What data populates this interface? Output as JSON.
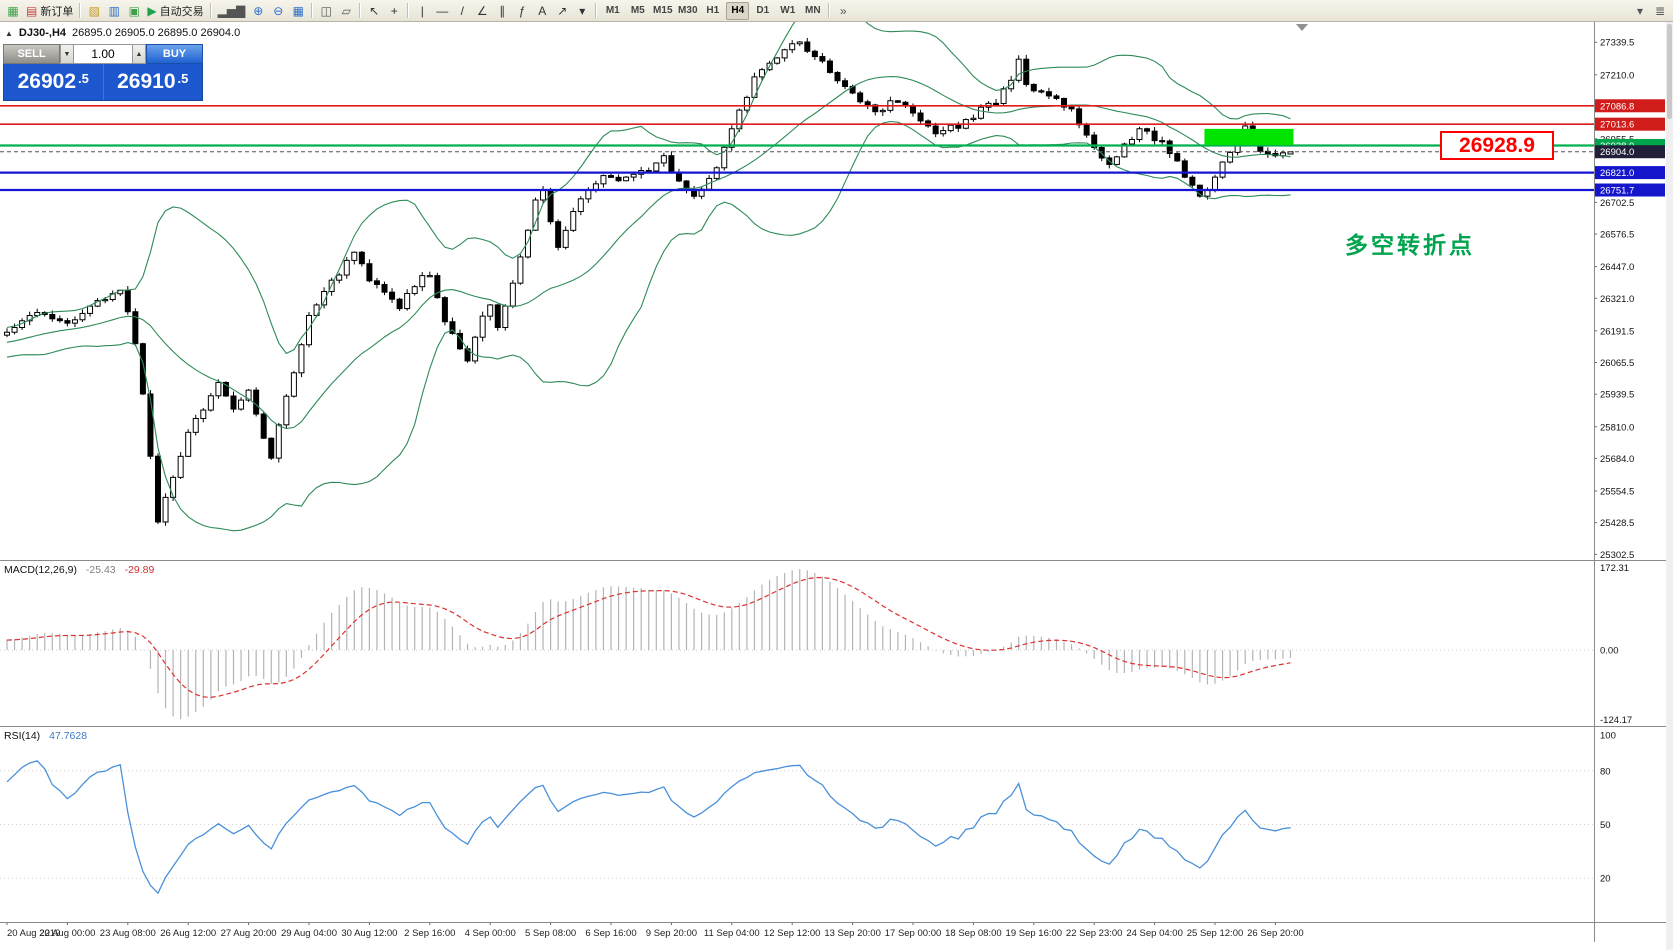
{
  "toolbar": {
    "selected_timeframe": "H4",
    "groups": [
      {
        "name": "file",
        "items": [
          {
            "name": "app-icon",
            "glyph": "▦",
            "color": "#3fa04c"
          },
          {
            "name": "new-order-button",
            "glyph": "▤",
            "color": "#cc4040",
            "label": "新订单"
          }
        ]
      },
      {
        "name": "windows",
        "items": [
          {
            "name": "profiles-icon",
            "glyph": "▧",
            "color": "#c09a28"
          },
          {
            "name": "market-watch-icon",
            "glyph": "▥",
            "color": "#2e6fc9"
          },
          {
            "name": "navigator-icon",
            "glyph": "▣",
            "color": "#3fa04c"
          },
          {
            "name": "autotrading-button",
            "glyph": "▶",
            "color": "#1fa24e",
            "label": "自动交易"
          }
        ]
      },
      {
        "name": "chart-view",
        "items": [
          {
            "name": "bar-chart-icon",
            "glyph": "▂▅▇",
            "color": "#555555"
          },
          {
            "name": "zoom-in-icon",
            "glyph": "⊕",
            "color": "#2e6fc9"
          },
          {
            "name": "zoom-out-icon",
            "glyph": "⊖",
            "color": "#2e6fc9"
          },
          {
            "name": "tile-windows-icon",
            "glyph": "▦",
            "color": "#2e6fc9"
          }
        ]
      },
      {
        "name": "arrange",
        "items": [
          {
            "name": "arrange-charts-icon",
            "glyph": "◫",
            "color": "#555555"
          },
          {
            "name": "cascade-charts-icon",
            "glyph": "▱",
            "color": "#555555"
          }
        ]
      },
      {
        "name": "pointer",
        "items": [
          {
            "name": "cursor-icon",
            "glyph": "↖",
            "color": "#333333"
          },
          {
            "name": "crosshair-icon",
            "glyph": "+",
            "color": "#333333"
          }
        ]
      },
      {
        "name": "draw-tools",
        "items": [
          {
            "name": "vertical-line-tool",
            "glyph": "|",
            "color": "#333333"
          },
          {
            "name": "horizontal-line-tool",
            "glyph": "—",
            "color": "#333333"
          },
          {
            "name": "trendline-tool",
            "glyph": "/",
            "color": "#333333"
          },
          {
            "name": "angle-trendline-tool",
            "glyph": "∠",
            "color": "#333333"
          },
          {
            "name": "channel-tool",
            "glyph": "∥",
            "color": "#333333"
          },
          {
            "name": "fibonacci-tool",
            "glyph": "ƒ",
            "color": "#333333"
          },
          {
            "name": "text-tool",
            "glyph": "A",
            "color": "#333333"
          },
          {
            "name": "arrow-tool",
            "glyph": "↗",
            "color": "#333333"
          },
          {
            "name": "shapes-dropdown",
            "glyph": "▾",
            "color": "#333333"
          }
        ]
      },
      {
        "name": "timeframes",
        "items": [
          {
            "name": "timeframe-m1",
            "label": "M1",
            "tf": true
          },
          {
            "name": "timeframe-m5",
            "label": "M5",
            "tf": true
          },
          {
            "name": "timeframe-m15",
            "label": "M15",
            "tf": true
          },
          {
            "name": "timeframe-m30",
            "label": "M30",
            "tf": true
          },
          {
            "name": "timeframe-h1",
            "label": "H1",
            "tf": true
          },
          {
            "name": "timeframe-h4",
            "label": "H4",
            "tf": true
          },
          {
            "name": "timeframe-d1",
            "label": "D1",
            "tf": true
          },
          {
            "name": "timeframe-w1",
            "label": "W1",
            "tf": true
          },
          {
            "name": "timeframe-mn",
            "label": "MN",
            "tf": true
          }
        ]
      },
      {
        "name": "overflow",
        "items": [
          {
            "name": "toolbar-overflow-icon",
            "glyph": "»",
            "color": "#555555"
          }
        ]
      }
    ],
    "right_icons": [
      {
        "name": "toolbar-customize-icon",
        "glyph": "▾",
        "color": "#555555"
      },
      {
        "name": "window-panels-icon",
        "glyph": "≣",
        "color": "#555555"
      }
    ]
  },
  "symbol_label": {
    "symbol": "DJ30-,H4",
    "ohlc": "26895.0 26905.0 26895.0 26904.0"
  },
  "trade_panel": {
    "collapse_glyph": "▲",
    "sell_label": "SELL",
    "buy_label": "BUY",
    "volume": "1.00",
    "dec_glyph": "▼",
    "inc_glyph": "▲",
    "sell_price_int": "26902",
    "sell_price_frac": ".5",
    "buy_price_int": "26910",
    "buy_price_frac": ".5",
    "panel_color": "#1c57ce"
  },
  "annotations": {
    "turning_point_text": "多空转折点",
    "turning_point_color": "#00a44e",
    "price_callout": "26928.9",
    "price_callout_color": "#ff0000"
  },
  "chart_data": {
    "type": "candlestick",
    "symbol": "DJ30-",
    "timeframe": "H4",
    "last_ohlc": {
      "open": 26895.0,
      "high": 26905.0,
      "low": 26895.0,
      "close": 26904.0
    },
    "n_candles": 171,
    "warmup": 40,
    "price_scale": {
      "min": 25280,
      "max": 27420
    },
    "close_anchors": [
      [
        -40,
        26050
      ],
      [
        -30,
        26120
      ],
      [
        -20,
        26080
      ],
      [
        -10,
        26150
      ],
      [
        0,
        26180
      ],
      [
        4,
        26260
      ],
      [
        8,
        26230
      ],
      [
        12,
        26300
      ],
      [
        15,
        26350
      ],
      [
        16,
        26280
      ],
      [
        17,
        26150
      ],
      [
        18,
        25950
      ],
      [
        19,
        25700
      ],
      [
        20,
        25430
      ],
      [
        21,
        25520
      ],
      [
        22,
        25600
      ],
      [
        24,
        25800
      ],
      [
        26,
        25870
      ],
      [
        28,
        25990
      ],
      [
        30,
        25880
      ],
      [
        32,
        25950
      ],
      [
        34,
        25760
      ],
      [
        35,
        25680
      ],
      [
        36,
        25820
      ],
      [
        38,
        26020
      ],
      [
        40,
        26250
      ],
      [
        42,
        26360
      ],
      [
        44,
        26420
      ],
      [
        46,
        26500
      ],
      [
        48,
        26400
      ],
      [
        50,
        26340
      ],
      [
        52,
        26290
      ],
      [
        54,
        26380
      ],
      [
        56,
        26420
      ],
      [
        58,
        26230
      ],
      [
        60,
        26120
      ],
      [
        61,
        26060
      ],
      [
        63,
        26260
      ],
      [
        64,
        26300
      ],
      [
        65,
        26210
      ],
      [
        66,
        26280
      ],
      [
        68,
        26480
      ],
      [
        70,
        26700
      ],
      [
        71,
        26740
      ],
      [
        72,
        26620
      ],
      [
        73,
        26520
      ],
      [
        75,
        26660
      ],
      [
        77,
        26760
      ],
      [
        79,
        26800
      ],
      [
        81,
        26780
      ],
      [
        83,
        26820
      ],
      [
        85,
        26840
      ],
      [
        87,
        26880
      ],
      [
        88,
        26820
      ],
      [
        89,
        26790
      ],
      [
        91,
        26720
      ],
      [
        93,
        26790
      ],
      [
        95,
        26910
      ],
      [
        97,
        27060
      ],
      [
        99,
        27190
      ],
      [
        101,
        27260
      ],
      [
        103,
        27310
      ],
      [
        105,
        27340
      ],
      [
        107,
        27280
      ],
      [
        109,
        27230
      ],
      [
        111,
        27160
      ],
      [
        113,
        27110
      ],
      [
        115,
        27060
      ],
      [
        117,
        27100
      ],
      [
        119,
        27080
      ],
      [
        121,
        27030
      ],
      [
        123,
        26970
      ],
      [
        125,
        27000
      ],
      [
        127,
        27020
      ],
      [
        129,
        27070
      ],
      [
        131,
        27100
      ],
      [
        133,
        27190
      ],
      [
        134,
        27260
      ],
      [
        135,
        27160
      ],
      [
        137,
        27130
      ],
      [
        139,
        27110
      ],
      [
        141,
        27070
      ],
      [
        143,
        26970
      ],
      [
        145,
        26890
      ],
      [
        146,
        26850
      ],
      [
        148,
        26930
      ],
      [
        150,
        26990
      ],
      [
        152,
        26960
      ],
      [
        153,
        26945
      ],
      [
        155,
        26860
      ],
      [
        156,
        26810
      ],
      [
        158,
        26715
      ],
      [
        159,
        26740
      ],
      [
        160,
        26790
      ],
      [
        161,
        26855
      ],
      [
        163,
        26950
      ],
      [
        164,
        27000
      ],
      [
        165,
        26950
      ],
      [
        166,
        26915
      ],
      [
        167,
        26890
      ],
      [
        168,
        26900
      ],
      [
        169,
        26895
      ],
      [
        170,
        26904
      ]
    ],
    "bollinger": {
      "period": 20,
      "deviation": 2,
      "color": "#2e8b57"
    },
    "h_lines": [
      {
        "name": "resistance-line-1",
        "label": "27086.8",
        "price": 27086.8,
        "color": "#e21b1b",
        "width": 1.6,
        "tag_bg": "#d11c1c"
      },
      {
        "name": "resistance-line-2",
        "label": "27013.6",
        "price": 27013.6,
        "color": "#e21b1b",
        "width": 1.6,
        "tag_bg": "#d11c1c"
      },
      {
        "name": "pivot-line",
        "label": "26928.9",
        "price": 26928.9,
        "color": "#00b14f",
        "width": 2.2,
        "tag_bg": "#00a44a"
      },
      {
        "name": "current-price-line",
        "label": "26904.0",
        "price": 26904.0,
        "color": "#555555",
        "width": 1,
        "dash": true,
        "tag_bg": "#20203a"
      },
      {
        "name": "support-line-1",
        "label": "26821.0",
        "price": 26821.0,
        "color": "#1515d6",
        "width": 2.2,
        "tag_bg": "#1515cc"
      },
      {
        "name": "support-line-2",
        "label": "26751.7",
        "price": 26751.7,
        "color": "#1515d6",
        "width": 2.2,
        "tag_bg": "#1515cc"
      }
    ],
    "highlight_box": {
      "from_candle": 159,
      "to_candle": 170,
      "price_top": 26995,
      "price_bottom": 26931,
      "color": "#00e400"
    },
    "y_axis": {
      "ticks": [
        "27339.5",
        "27210.0",
        "26955.5",
        "26702.5",
        "26576.5",
        "26447.0",
        "26321.0",
        "26191.5",
        "26065.5",
        "25939.5",
        "25810.0",
        "25684.0",
        "25554.5",
        "25428.5",
        "25302.5"
      ]
    },
    "x_axis": {
      "labels": [
        {
          "i": 0,
          "text": "20 Aug 2019"
        },
        {
          "i": 8,
          "text": "22 Aug 00:00"
        },
        {
          "i": 16,
          "text": "23 Aug 08:00"
        },
        {
          "i": 24,
          "text": "26 Aug 12:00"
        },
        {
          "i": 32,
          "text": "27 Aug 20:00"
        },
        {
          "i": 40,
          "text": "29 Aug 04:00"
        },
        {
          "i": 48,
          "text": "30 Aug 12:00"
        },
        {
          "i": 56,
          "text": "2 Sep 16:00"
        },
        {
          "i": 64,
          "text": "4 Sep 00:00"
        },
        {
          "i": 72,
          "text": "5 Sep 08:00"
        },
        {
          "i": 80,
          "text": "6 Sep 16:00"
        },
        {
          "i": 88,
          "text": "9 Sep 20:00"
        },
        {
          "i": 96,
          "text": "11 Sep 04:00"
        },
        {
          "i": 104,
          "text": "12 Sep 12:00"
        },
        {
          "i": 112,
          "text": "13 Sep 20:00"
        },
        {
          "i": 120,
          "text": "17 Sep 00:00"
        },
        {
          "i": 128,
          "text": "18 Sep 08:00"
        },
        {
          "i": 136,
          "text": "19 Sep 16:00"
        },
        {
          "i": 144,
          "text": "22 Sep 23:00"
        },
        {
          "i": 152,
          "text": "24 Sep 04:00"
        },
        {
          "i": 160,
          "text": "25 Sep 12:00"
        },
        {
          "i": 168,
          "text": "26 Sep 20:00"
        }
      ]
    },
    "macd": {
      "label": "MACD(12,26,9)",
      "value_main": "-25.43",
      "value_signal": "-29.89",
      "axis_max_label": "172.31",
      "zero_label": "0.00",
      "axis_min_label": "-124.17",
      "hist_color": "#b4b4b4",
      "signal_color": "#e03030"
    },
    "rsi": {
      "label": "RSI(14)",
      "value": "47.7628",
      "color": "#4a90d9",
      "ticks": [
        "100",
        "80",
        "50",
        "20"
      ],
      "levels": [
        80,
        50,
        20
      ]
    }
  }
}
